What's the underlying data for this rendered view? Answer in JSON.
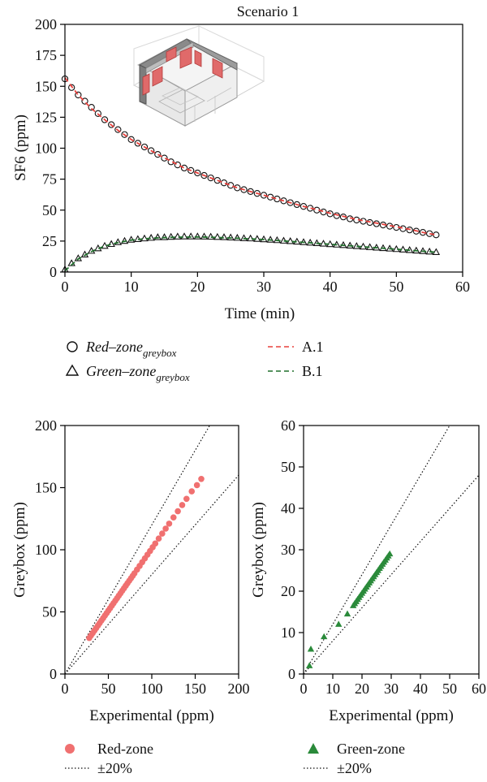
{
  "chart_data": [
    {
      "type": "scatter",
      "title": "Scenario 1",
      "xlabel": "Time (min)",
      "ylabel": "SF6 (ppm)",
      "xlim": [
        0,
        60
      ],
      "ylim": [
        0,
        200
      ],
      "x_ticks": [
        0,
        10,
        20,
        30,
        40,
        50,
        60
      ],
      "y_ticks": [
        0,
        25,
        50,
        75,
        100,
        125,
        150,
        175,
        200
      ],
      "grid": false,
      "inset_image": "building-floorplan-illustration",
      "series": [
        {
          "name": "Red–zone",
          "subscript": "greybox",
          "kind": "markers",
          "marker": "circle",
          "x": [
            0,
            1,
            2,
            3,
            4,
            5,
            6,
            7,
            8,
            9,
            10,
            11,
            12,
            13,
            14,
            15,
            16,
            17,
            18,
            19,
            20,
            21,
            22,
            23,
            24,
            25,
            26,
            27,
            28,
            29,
            30,
            31,
            32,
            33,
            34,
            35,
            36,
            37,
            38,
            39,
            40,
            41,
            42,
            43,
            44,
            45,
            46,
            47,
            48,
            49,
            50,
            51,
            52,
            53,
            54,
            55,
            56
          ],
          "y": [
            156,
            149,
            143,
            138,
            133,
            128,
            123,
            119,
            115,
            111,
            107,
            104,
            101,
            98,
            95,
            92,
            89,
            86.5,
            84,
            82,
            80,
            78,
            76,
            74,
            72,
            70,
            68,
            66.5,
            65,
            63.5,
            62,
            60.5,
            59,
            57.5,
            56,
            54.5,
            53,
            51.5,
            50,
            48.5,
            47,
            45.5,
            44.5,
            43,
            42,
            41,
            40,
            39,
            38,
            37,
            36,
            35,
            34,
            33,
            32,
            31,
            30
          ]
        },
        {
          "name": "Green–zone",
          "subscript": "greybox",
          "kind": "markers",
          "marker": "triangle",
          "x": [
            0,
            1,
            2,
            3,
            4,
            5,
            6,
            7,
            8,
            9,
            10,
            11,
            12,
            13,
            14,
            15,
            16,
            17,
            18,
            19,
            20,
            21,
            22,
            23,
            24,
            25,
            26,
            27,
            28,
            29,
            30,
            31,
            32,
            33,
            34,
            35,
            36,
            37,
            38,
            39,
            40,
            41,
            42,
            43,
            44,
            45,
            46,
            47,
            48,
            49,
            50,
            51,
            52,
            53,
            54,
            55,
            56
          ],
          "y": [
            2,
            7,
            11,
            14,
            17,
            19,
            21,
            22.5,
            24,
            25,
            26,
            26.5,
            27,
            27.5,
            28,
            28,
            28.3,
            28.5,
            28.6,
            28.6,
            28.6,
            28.5,
            28.4,
            28.2,
            28,
            27.8,
            27.5,
            27.2,
            27,
            26.6,
            26.3,
            26,
            25.6,
            25.2,
            24.8,
            24.4,
            24,
            23.6,
            23.2,
            22.8,
            22.4,
            22,
            21.6,
            21.2,
            20.8,
            20.4,
            20,
            19.6,
            19.2,
            18.8,
            18.4,
            18,
            17.6,
            17.2,
            16.8,
            16.4,
            16
          ]
        },
        {
          "name": "A.1",
          "kind": "line",
          "style": "dashed",
          "x": [
            0,
            2,
            4,
            6,
            8,
            10,
            12,
            14,
            16,
            18,
            20,
            22,
            24,
            26,
            28,
            30,
            32,
            34,
            36,
            38,
            40,
            42,
            44,
            46,
            48,
            50,
            52,
            54,
            56
          ],
          "y": [
            157,
            143,
            132,
            123,
            114.5,
            107,
            101,
            95,
            89.5,
            84,
            80,
            76,
            72,
            68,
            65,
            62,
            59,
            56,
            53,
            50.5,
            47.5,
            45,
            42.5,
            40.5,
            38.5,
            36.5,
            34.5,
            32,
            30
          ]
        },
        {
          "name": "B.1",
          "kind": "line",
          "style": "dashed",
          "x": [
            0,
            2,
            4,
            6,
            8,
            10,
            12,
            14,
            16,
            18,
            20,
            22,
            24,
            26,
            28,
            30,
            32,
            34,
            36,
            38,
            40,
            42,
            44,
            46,
            48,
            50,
            52,
            54,
            56
          ],
          "y": [
            1,
            10.5,
            16.5,
            21,
            23.8,
            25.8,
            26.9,
            27.6,
            28,
            28.2,
            28.3,
            28.1,
            27.7,
            27.3,
            26.8,
            26.2,
            25.5,
            24.7,
            24,
            23.2,
            22.4,
            21.6,
            20.8,
            20,
            19.2,
            18.4,
            17.6,
            16.8,
            16
          ]
        }
      ],
      "colors": {
        "red_zone": "#e8403c",
        "green_zone": "#1e6e2a"
      }
    },
    {
      "type": "scatter",
      "title": "",
      "xlabel": "Experimental (ppm)",
      "ylabel": "Greybox (ppm)",
      "xlim": [
        0,
        200
      ],
      "ylim": [
        0,
        200
      ],
      "x_ticks": [
        0,
        50,
        100,
        150,
        200
      ],
      "y_ticks": [
        0,
        50,
        100,
        150,
        200
      ],
      "grid": false,
      "series": [
        {
          "name": "Red-zone",
          "kind": "markers",
          "marker": "filled-circle",
          "color": "#f07070",
          "x": [
            28,
            30,
            32,
            34,
            36,
            38,
            40,
            42,
            44,
            46,
            48,
            50,
            52,
            54,
            56,
            58,
            60,
            62,
            64,
            66,
            68,
            70,
            72,
            74,
            76,
            78,
            80,
            83,
            86,
            89,
            92,
            95,
            98,
            101,
            104,
            108,
            112,
            116,
            120,
            125,
            130,
            135,
            140,
            146,
            152,
            157
          ],
          "y": [
            29,
            31,
            33,
            35,
            37,
            39,
            41,
            43,
            45,
            47,
            49,
            51,
            53,
            55,
            57,
            59,
            61,
            63,
            65,
            67,
            69,
            71,
            73,
            75,
            77,
            79,
            81,
            84,
            87,
            90,
            93,
            96,
            99,
            102,
            105,
            109,
            113,
            117,
            121,
            126,
            131,
            136,
            141,
            147,
            152,
            157
          ]
        },
        {
          "name": "±20%",
          "kind": "reference-lines",
          "style": "dotted",
          "slopes": [
            1.2,
            0.8
          ]
        }
      ]
    },
    {
      "type": "scatter",
      "title": "",
      "xlabel": "Experimental (ppm)",
      "ylabel": "Greybox (ppm)",
      "xlim": [
        0,
        60
      ],
      "ylim": [
        0,
        60
      ],
      "x_ticks": [
        0,
        10,
        20,
        30,
        40,
        50,
        60
      ],
      "y_ticks": [
        0,
        10,
        20,
        30,
        40,
        50,
        60
      ],
      "grid": false,
      "series": [
        {
          "name": "Green-zone",
          "kind": "markers",
          "marker": "filled-triangle",
          "color": "#2a8a3a",
          "x": [
            2,
            2.5,
            7,
            12,
            15,
            17,
            17.5,
            18,
            18.5,
            19,
            19.5,
            20,
            20.5,
            21,
            21.5,
            22,
            22.5,
            23,
            23.5,
            24,
            24.5,
            25,
            25.5,
            26,
            26.5,
            27,
            27.5,
            28,
            28.5,
            29,
            29.5
          ],
          "y": [
            2,
            6,
            9,
            12,
            14.5,
            16.5,
            17,
            17.5,
            18,
            18.5,
            19,
            19.5,
            20,
            20.5,
            21,
            21.5,
            22,
            22.5,
            23,
            23.5,
            24,
            24.5,
            25,
            25.5,
            26,
            26.5,
            27,
            27.5,
            28,
            28.5,
            29
          ]
        },
        {
          "name": "±20%",
          "kind": "reference-lines",
          "style": "dotted",
          "slopes": [
            1.2,
            0.8
          ]
        }
      ]
    }
  ]
}
